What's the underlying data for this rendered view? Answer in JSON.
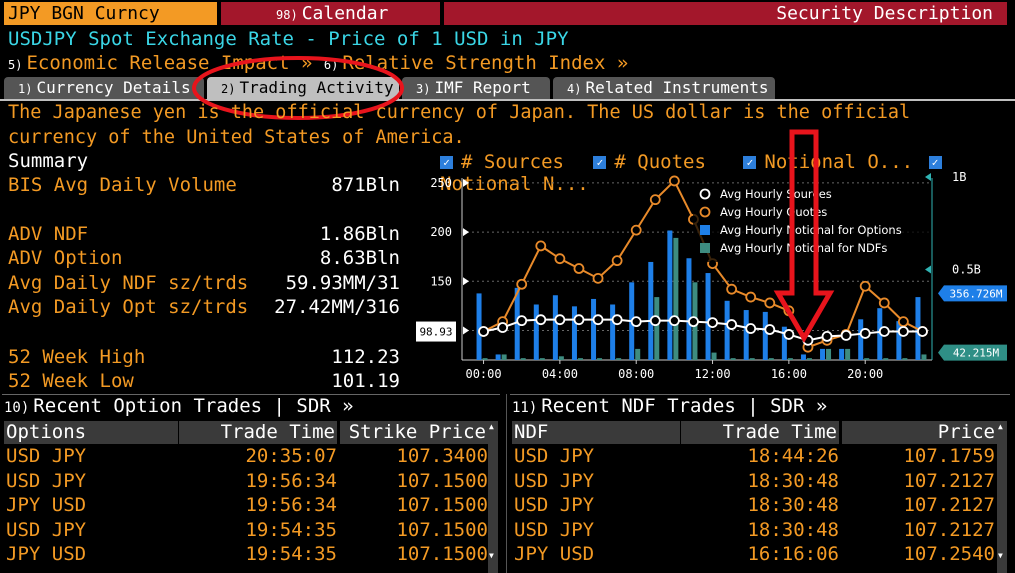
{
  "topbar": {
    "ticker": "JPY BGN Curncy",
    "calendar_num": "98)",
    "calendar": "Calendar",
    "security_desc": "Security Description"
  },
  "headline": "USDJPY Spot Exchange Rate - Price of 1 USD in JPY",
  "links": {
    "econ_num": "5)",
    "econ": "Economic Release Impact »",
    "rsi_num": "6)",
    "rsi": "Relative Strength Index »"
  },
  "tabs": [
    {
      "num": "1)",
      "label": "Currency Details"
    },
    {
      "num": "2)",
      "label": "Trading Activity"
    },
    {
      "num": "3)",
      "label": "IMF Report"
    },
    {
      "num": "4)",
      "label": "Related Instruments"
    }
  ],
  "description": "The Japanese yen is the official currency of Japan.  The US dollar is the official currency of the United States of America.",
  "summary": {
    "title": "Summary",
    "rows": [
      {
        "label": "BIS Avg Daily Volume",
        "value": "871Bln"
      },
      {
        "label": "ADV NDF",
        "value": "1.86Bln"
      },
      {
        "label": "ADV Option",
        "value": "8.63Bln"
      },
      {
        "label": "Avg Daily NDF sz/trds",
        "value": "59.93MM/31"
      },
      {
        "label": "Avg Daily Opt sz/trds",
        "value": "27.42MM/316"
      },
      {
        "label": "52 Week High",
        "value": "112.23"
      },
      {
        "label": "52 Week Low",
        "value": "101.19"
      }
    ]
  },
  "chart_legend": {
    "sources": "# Sources",
    "quotes": "# Quotes",
    "notional_o": "Notional O...",
    "notional_n": "Notional N..."
  },
  "chart_data": {
    "type": "bar",
    "x_ticks": [
      "00:00",
      "04:00",
      "08:00",
      "12:00",
      "16:00",
      "20:00"
    ],
    "y_left_ticks": [
      "250",
      "200",
      "150",
      "100"
    ],
    "y_right_ticks": [
      "1B",
      "0.5B"
    ],
    "ylim_left": [
      70,
      255
    ],
    "ylim_right": [
      0,
      1.0
    ],
    "legend": [
      "Avg Hourly Sources",
      "Avg Hourly Quotes",
      "Avg Hourly Notional for Options",
      "Avg Hourly Notional for NDFs"
    ],
    "colors": {
      "sources": "#ffffff",
      "quotes": "#e88a2a",
      "options": "#1e7fe8",
      "ndfs": "#3e8c80"
    },
    "hours": [
      0,
      1,
      2,
      3,
      4,
      5,
      6,
      7,
      8,
      9,
      10,
      11,
      12,
      13,
      14,
      15,
      16,
      17,
      18,
      19,
      20,
      21,
      22,
      23
    ],
    "avg_hourly_sources": [
      99,
      103,
      110,
      111,
      111,
      111,
      111,
      111,
      109,
      110,
      110,
      109,
      108,
      106,
      102,
      101,
      96,
      90,
      94,
      95,
      97,
      99,
      99,
      99
    ],
    "avg_hourly_quotes": [
      99,
      109,
      147,
      186,
      173,
      163,
      153,
      171,
      202,
      233,
      252,
      213,
      168,
      142,
      134,
      128,
      120,
      83,
      90,
      96,
      145,
      128,
      109,
      99
    ],
    "avg_hourly_notional_options": [
      0.36,
      0.03,
      0.39,
      0.3,
      0.35,
      0.29,
      0.33,
      0.3,
      0.42,
      0.53,
      0.7,
      0.55,
      0.47,
      0.32,
      0.27,
      0.26,
      0.18,
      0.03,
      0.06,
      0.06,
      0.22,
      0.28,
      0.21,
      0.34
    ],
    "avg_hourly_notional_ndfs": [
      0.01,
      0.03,
      0.01,
      0.01,
      0.02,
      0.01,
      0.01,
      0.01,
      0.06,
      0.34,
      0.66,
      0.42,
      0.04,
      0.01,
      0.01,
      0.01,
      0.01,
      0.01,
      0.06,
      0.06,
      0.01,
      0.01,
      0.01,
      0.03
    ],
    "left_marker": "98.93",
    "right_marker_1": "356.726M",
    "right_marker_2": "42.215M"
  },
  "option_trades": {
    "header_num": "10)",
    "header": "Recent Option Trades | SDR »",
    "columns": [
      "Options",
      "Trade Time",
      "Strike Price"
    ],
    "rows": [
      [
        "USD JPY",
        "20:35:07",
        "107.3400"
      ],
      [
        "USD JPY",
        "19:56:34",
        "107.1500"
      ],
      [
        "JPY USD",
        "19:56:34",
        "107.1500"
      ],
      [
        "USD JPY",
        "19:54:35",
        "107.1500"
      ],
      [
        "JPY USD",
        "19:54:35",
        "107.1500"
      ]
    ]
  },
  "ndf_trades": {
    "header_num": "11)",
    "header": "Recent NDF Trades | SDR »",
    "columns": [
      "NDF",
      "Trade Time",
      "Price"
    ],
    "rows": [
      [
        "USD JPY",
        "18:44:26",
        "107.1759"
      ],
      [
        "USD JPY",
        "18:30:48",
        "107.2127"
      ],
      [
        "USD JPY",
        "18:30:48",
        "107.2127"
      ],
      [
        "USD JPY",
        "18:30:48",
        "107.2127"
      ],
      [
        "JPY USD",
        "16:16:06",
        "107.2540"
      ]
    ]
  }
}
